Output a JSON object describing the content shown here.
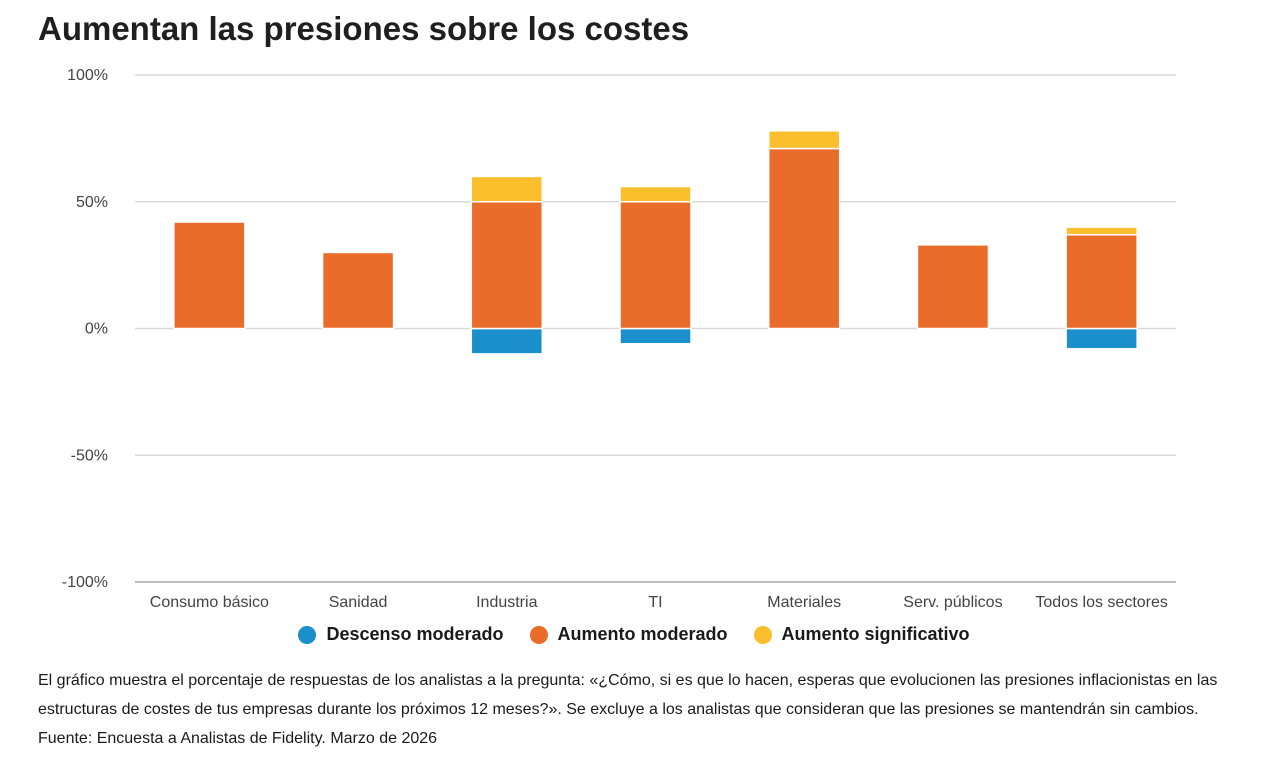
{
  "chart_data": {
    "type": "bar",
    "stacked": true,
    "title": "Aumentan las presiones sobre los costes",
    "categories": [
      "Consumo básico",
      "Sanidad",
      "Industria",
      "TI",
      "Materiales",
      "Serv. públicos",
      "Todos los sectores"
    ],
    "series": [
      {
        "name": "Descenso moderado",
        "color": "#1a8fcc",
        "values": [
          0,
          0,
          -10,
          -6,
          0,
          0,
          -8
        ]
      },
      {
        "name": "Aumento moderado",
        "color": "#e96c2a",
        "values": [
          42,
          30,
          50,
          50,
          71,
          33,
          37
        ]
      },
      {
        "name": "Aumento significativo",
        "color": "#fbbf2e",
        "values": [
          0,
          0,
          10,
          6,
          7,
          0,
          3
        ]
      }
    ],
    "ylim": [
      -100,
      100
    ],
    "yticks": [
      100,
      50,
      0,
      -50,
      -100
    ],
    "ytick_labels": [
      "100%",
      "50%",
      "0%",
      "-50%",
      "-100%"
    ],
    "grid": true,
    "legend": "bottom"
  },
  "note": "El gráfico muestra el porcentaje de respuestas de los analistas a la pregunta: «¿Cómo, si es que lo hacen, esperas que evolucionen las presiones inflacionistas en las estructuras de costes de tus empresas durante los próximos 12 meses?». Se excluye a los analistas que consideran que las presiones se mantendrán sin cambios. Fuente: Encuesta a Analistas de Fidelity. Marzo de 2026"
}
